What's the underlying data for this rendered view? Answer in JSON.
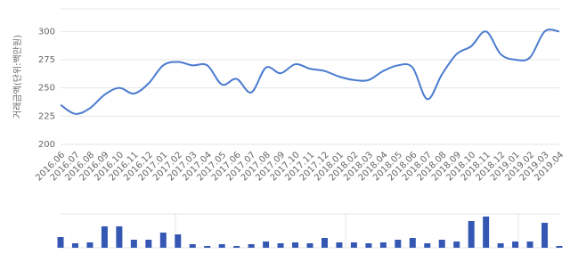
{
  "chart_data": [
    {
      "type": "line",
      "y_label": "거래금액(단위:백만원)",
      "categories": [
        "2016.06",
        "2016.07",
        "2016.08",
        "2016.09",
        "2016.10",
        "2016.11",
        "2016.12",
        "2017.01",
        "2017.02",
        "2017.03",
        "2017.04",
        "2017.05",
        "2017.06",
        "2017.07",
        "2017.08",
        "2017.09",
        "2017.10",
        "2017.11",
        "2017.12",
        "2018.01",
        "2018.02",
        "2018.03",
        "2018.04",
        "2018.05",
        "2018.06",
        "2018.07",
        "2018.08",
        "2018.09",
        "2018.10",
        "2018.11",
        "2018.12",
        "2019.01",
        "2019.02",
        "2019.03",
        "2019.04"
      ],
      "values": [
        235,
        227,
        232,
        244,
        250,
        245,
        254,
        270,
        273,
        270,
        270,
        253,
        258,
        246,
        268,
        263,
        271,
        267,
        265,
        260,
        257,
        257,
        265,
        270,
        268,
        240,
        262,
        280,
        287,
        300,
        280,
        275,
        277,
        300,
        300
      ],
      "color": "#4a7bd0",
      "ylim": [
        200,
        320
      ],
      "yticks": [
        200,
        225,
        250,
        275,
        300
      ],
      "grid": true
    },
    {
      "type": "bar",
      "values": [
        12,
        5,
        6,
        24,
        24,
        9,
        9,
        17,
        15,
        4,
        2,
        4,
        2,
        4,
        7,
        5,
        6,
        5,
        11,
        6,
        6,
        5,
        6,
        9,
        11,
        5,
        9,
        7,
        30,
        35,
        5,
        7,
        7,
        28,
        2
      ],
      "color": "#3457b3",
      "ylim": [
        0,
        38
      ]
    }
  ]
}
